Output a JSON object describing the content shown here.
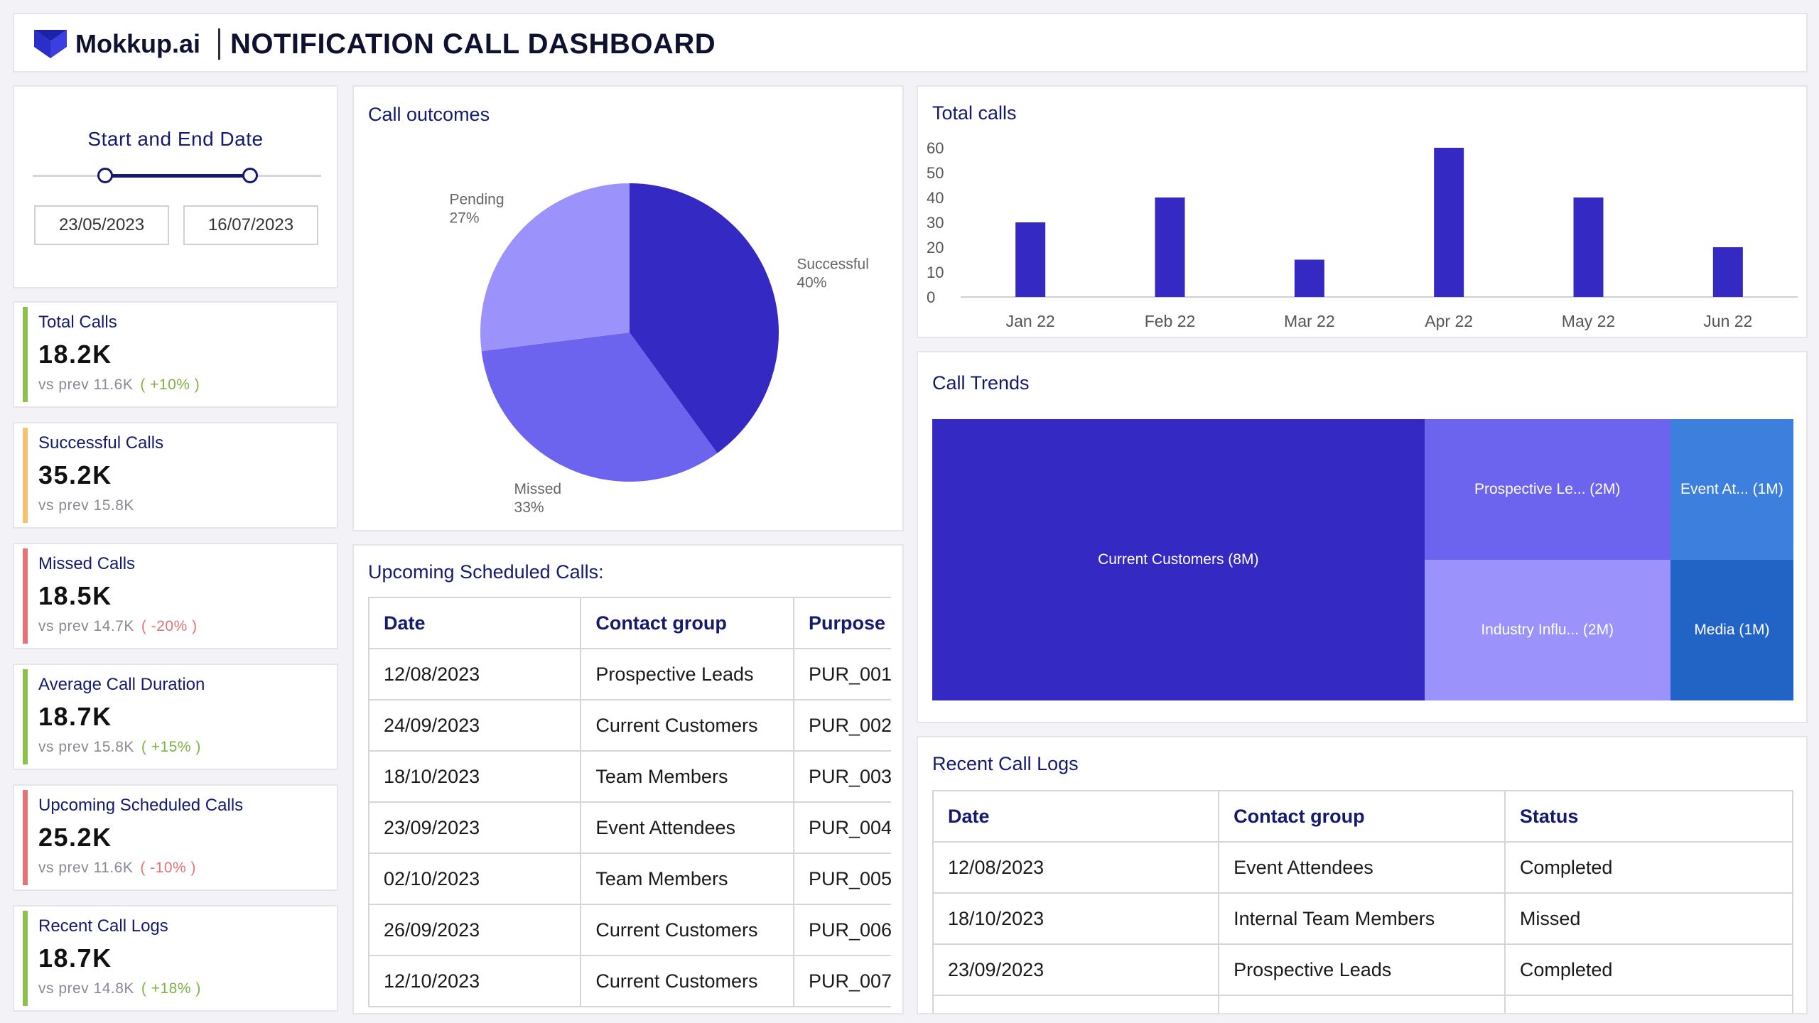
{
  "header": {
    "brand": "Mokkup.ai",
    "title": "NOTIFICATION CALL DASHBOARD"
  },
  "date_filter": {
    "title": "Start and End Date",
    "start": "23/05/2023",
    "end": "16/07/2023"
  },
  "kpis": [
    {
      "label": "Total Calls",
      "value": "18.2K",
      "prev": "vs prev 11.6K",
      "change": "( +10% )",
      "bar_color": "#8bc34a",
      "change_color": "#7cb342"
    },
    {
      "label": "Successful Calls",
      "value": "35.2K",
      "prev": "vs prev 15.8K",
      "change": "",
      "bar_color": "#f6c26b",
      "change_color": "#7cb342"
    },
    {
      "label": "Missed Calls",
      "value": "18.5K",
      "prev": "vs prev 14.7K",
      "change": "( -20% )",
      "bar_color": "#e57373",
      "change_color": "#e57373"
    },
    {
      "label": "Average Call Duration",
      "value": "18.7K",
      "prev": "vs prev 15.8K",
      "change": "( +15% )",
      "bar_color": "#8bc34a",
      "change_color": "#7cb342"
    },
    {
      "label": "Upcoming Scheduled Calls",
      "value": "25.2K",
      "prev": "vs prev 11.6K",
      "change": "( -10% )",
      "bar_color": "#e57373",
      "change_color": "#e57373"
    },
    {
      "label": "Recent Call Logs",
      "value": "18.7K",
      "prev": "vs prev 14.8K",
      "change": "( +18% )",
      "bar_color": "#8bc34a",
      "change_color": "#7cb342"
    }
  ],
  "call_outcomes": {
    "title": "Call outcomes"
  },
  "upcoming": {
    "title": "Upcoming Scheduled Calls:",
    "columns": [
      "Date",
      "Contact group",
      "Purpose"
    ],
    "rows": [
      [
        "12/08/2023",
        "Prospective Leads",
        "PUR_001"
      ],
      [
        "24/09/2023",
        "Current Customers",
        "PUR_002"
      ],
      [
        "18/10/2023",
        "Team Members",
        "PUR_003"
      ],
      [
        "23/09/2023",
        "Event Attendees",
        "PUR_004"
      ],
      [
        "02/10/2023",
        "Team Members",
        "PUR_005"
      ],
      [
        "26/09/2023",
        "Current Customers",
        "PUR_006"
      ],
      [
        "12/10/2023",
        "Current Customers",
        "PUR_007"
      ]
    ]
  },
  "total_calls": {
    "title": "Total calls"
  },
  "call_trends": {
    "title": "Call Trends"
  },
  "recent_logs": {
    "title": "Recent Call Logs",
    "columns": [
      "Date",
      "Contact group",
      "Status"
    ],
    "rows": [
      [
        "12/08/2023",
        "Event Attendees",
        "Completed"
      ],
      [
        "18/10/2023",
        "Internal Team Members",
        "Missed"
      ],
      [
        "23/09/2023",
        "Prospective Leads",
        "Completed"
      ]
    ]
  },
  "chart_data": [
    {
      "type": "pie",
      "title": "Call outcomes",
      "slices": [
        {
          "label": "Successful",
          "value": 40,
          "pct_label": "40%",
          "color": "#3529c4"
        },
        {
          "label": "Missed",
          "value": 33,
          "pct_label": "33%",
          "color": "#6c63ee"
        },
        {
          "label": "Pending",
          "value": 27,
          "pct_label": "27%",
          "color": "#9b92fb"
        }
      ]
    },
    {
      "type": "bar",
      "title": "Total calls",
      "categories": [
        "Jan 22",
        "Feb 22",
        "Mar 22",
        "Apr 22",
        "May 22",
        "Jun 22"
      ],
      "values": [
        30,
        40,
        15,
        60,
        40,
        20
      ],
      "ylim": [
        0,
        60
      ],
      "yticks": [
        "0",
        "10",
        "20",
        "30",
        "40",
        "50",
        "60"
      ],
      "color": "#3529c4",
      "grid": false
    },
    {
      "type": "treemap",
      "title": "Call Trends",
      "items": [
        {
          "label": "Current Customers (8M)",
          "value": 8,
          "color": "#3529c4"
        },
        {
          "label": "Prospective Le... (2M)",
          "value": 2,
          "color": "#6c63ee"
        },
        {
          "label": "Industry Influ... (2M)",
          "value": 2,
          "color": "#9b92fb"
        },
        {
          "label": "Event At... (1M)",
          "value": 1,
          "color": "#3d7fdc"
        },
        {
          "label": "Media (1M)",
          "value": 1,
          "color": "#2263c6"
        }
      ]
    }
  ]
}
